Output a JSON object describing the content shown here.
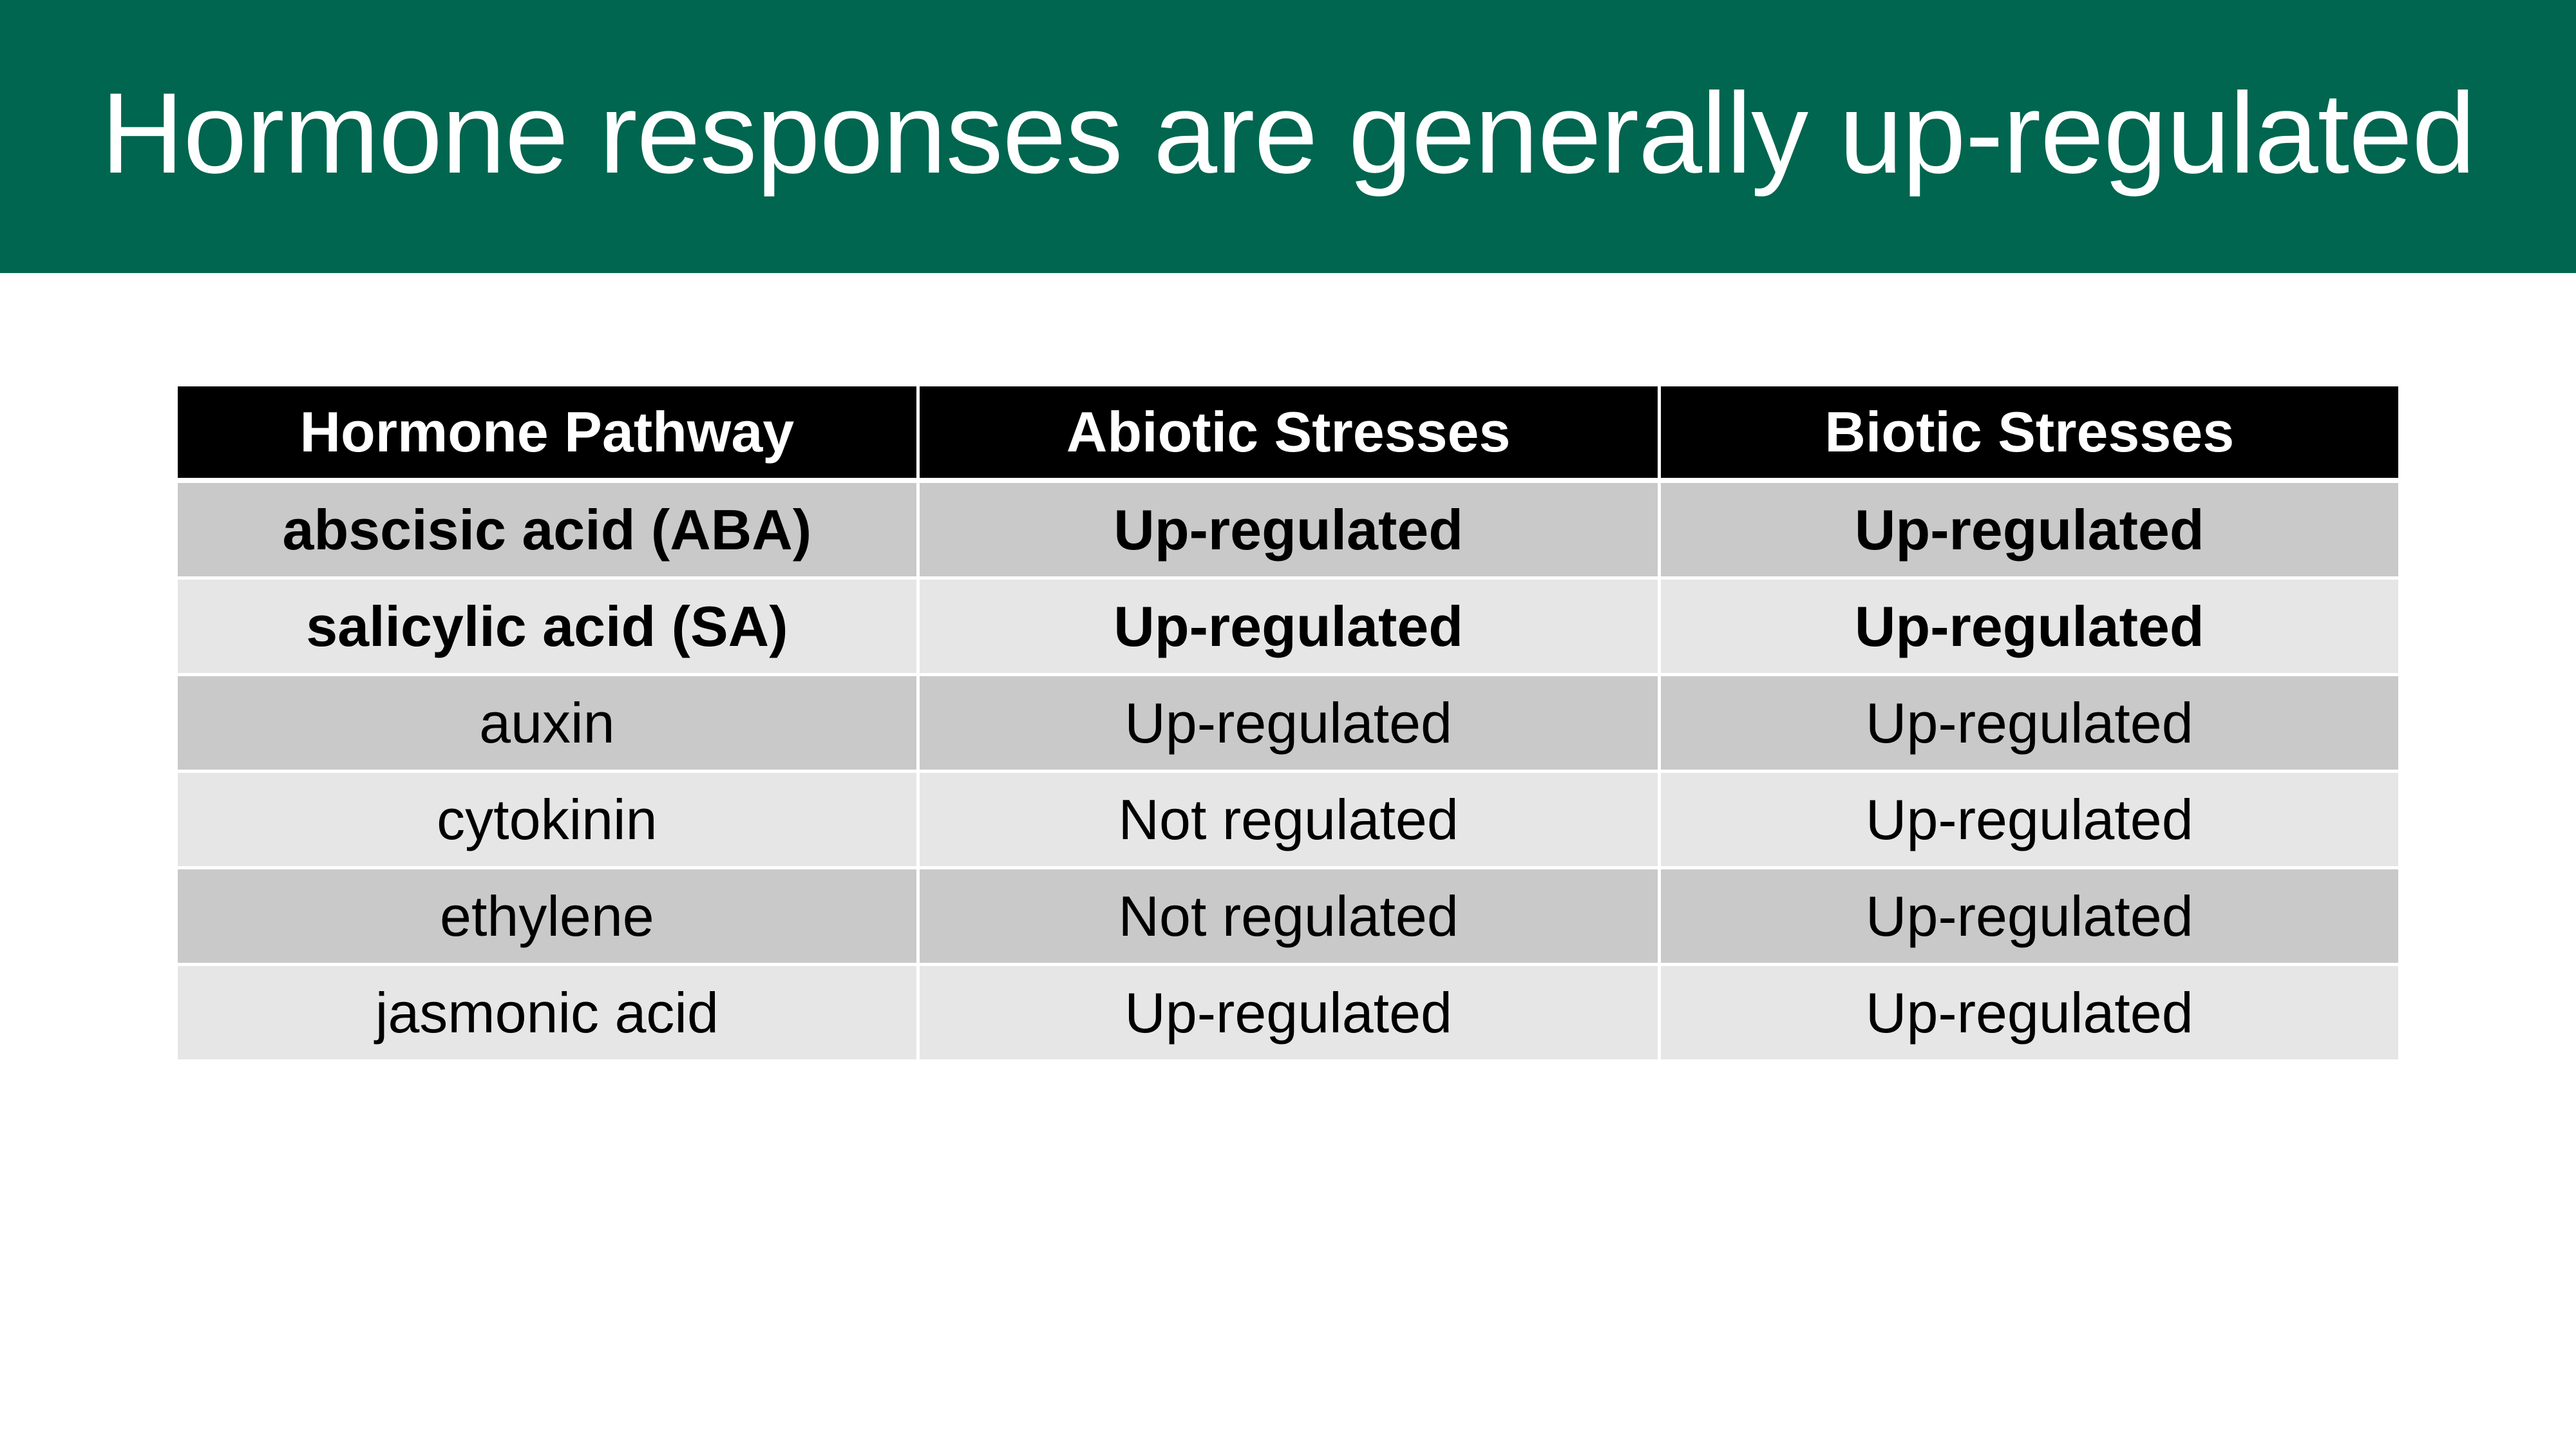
{
  "slide": {
    "title": "Hormone responses are generally up-regulated",
    "accent_color": "#00664f"
  },
  "table": {
    "headers": [
      "Hormone Pathway",
      "Abiotic Stresses",
      "Biotic Stresses"
    ],
    "rows": [
      {
        "cells": [
          "abscisic acid (ABA)",
          "Up-regulated",
          "Up-regulated"
        ],
        "bold": true
      },
      {
        "cells": [
          "salicylic acid (SA)",
          "Up-regulated",
          "Up-regulated"
        ],
        "bold": true
      },
      {
        "cells": [
          "auxin",
          "Up-regulated",
          "Up-regulated"
        ],
        "bold": false
      },
      {
        "cells": [
          "cytokinin",
          "Not regulated",
          "Up-regulated"
        ],
        "bold": false
      },
      {
        "cells": [
          "ethylene",
          "Not regulated",
          "Up-regulated"
        ],
        "bold": false
      },
      {
        "cells": [
          "jasmonic acid",
          "Up-regulated",
          "Up-regulated"
        ],
        "bold": false
      }
    ]
  }
}
